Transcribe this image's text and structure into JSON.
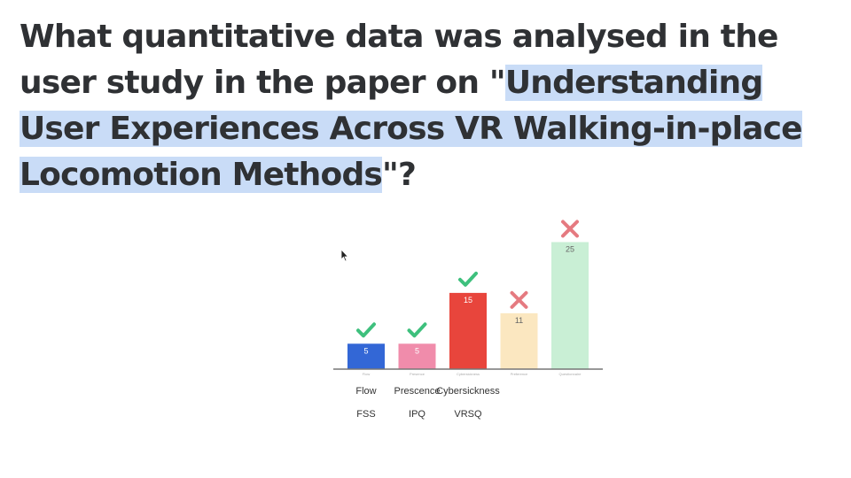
{
  "slide": {
    "question_plain": "What quantitative data was analysed in the user study in the paper on \"",
    "question_highlight": "Understanding User Experiences Across VR Walking-in-place Locomotion Methods",
    "question_end": "\"?"
  },
  "measures": [
    {
      "name": "Flow",
      "instrument": "FSS"
    },
    {
      "name": "Prescence",
      "instrument": "IPQ"
    },
    {
      "name": "Cybersickness",
      "instrument": "VRSQ"
    }
  ],
  "colors": {
    "check": "#3ec07d",
    "cross": "#e57a80",
    "highlight": "#c9dcf7"
  },
  "chart_data": {
    "type": "bar",
    "categories": [
      "Flow",
      "Presence",
      "Cybersickness",
      "Preference",
      "Questionnaire"
    ],
    "values": [
      5,
      5,
      15,
      11,
      25
    ],
    "colors": [
      "#3367d6",
      "#f08cab",
      "#e8453c",
      "#fbe7c0",
      "#c9efd5"
    ],
    "marks": [
      "check",
      "check",
      "check",
      "cross",
      "cross"
    ],
    "ylim": [
      0,
      27
    ]
  }
}
